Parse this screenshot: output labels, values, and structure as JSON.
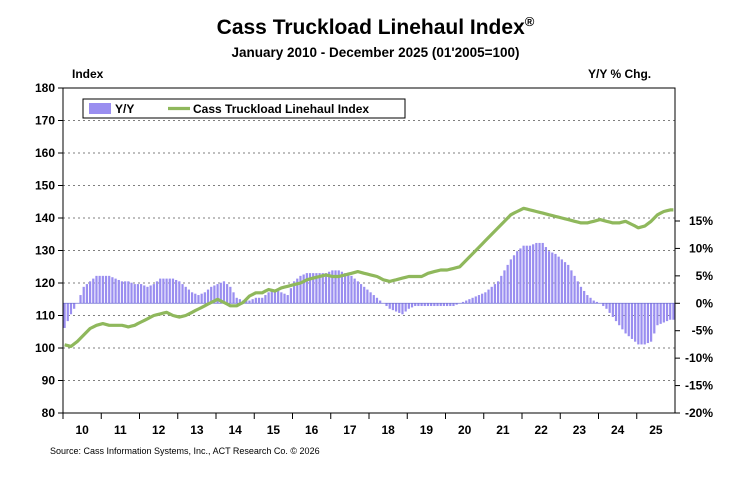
{
  "chart_data": {
    "type": "bar+line",
    "title": "Cass Truckload Linehaul Index",
    "title_mark": "®",
    "subtitle": "January 2010 - December 2025 (01'2005=100)",
    "left_axis_label": "Index",
    "right_axis_label": "Y/Y % Chg.",
    "source": "Source: Cass Information Systems, Inc., ACT Research Co. © 2026",
    "left_ylim": [
      80,
      180
    ],
    "left_ticks": [
      80,
      90,
      100,
      110,
      120,
      130,
      140,
      150,
      160,
      170,
      180
    ],
    "right_ylim": [
      -20,
      15
    ],
    "right_ticks": [
      -20,
      -15,
      -10,
      -5,
      0,
      5,
      10,
      15
    ],
    "right_tick_labels": [
      "-20%",
      "-15%",
      "-10%",
      "-5%",
      "0%",
      "5%",
      "10%",
      "15%"
    ],
    "x_tick_labels": [
      "10",
      "11",
      "12",
      "13",
      "14",
      "15",
      "16",
      "17",
      "18",
      "19",
      "20",
      "21",
      "22",
      "23",
      "24",
      "25"
    ],
    "x_start_year": 2010,
    "months": 192,
    "grid": "horizontal dashed",
    "legend_position": "top-left",
    "series": [
      {
        "name": "Y/Y",
        "axis": "right",
        "kind": "bar",
        "color": "#9a8ef0",
        "anchors": [
          [
            0,
            -4.5
          ],
          [
            2,
            -2
          ],
          [
            4,
            0
          ],
          [
            6,
            3
          ],
          [
            8,
            4
          ],
          [
            10,
            5
          ],
          [
            12,
            5
          ],
          [
            14,
            5
          ],
          [
            16,
            4.5
          ],
          [
            18,
            4
          ],
          [
            20,
            4
          ],
          [
            22,
            3.5
          ],
          [
            24,
            3.5
          ],
          [
            26,
            3
          ],
          [
            28,
            3.5
          ],
          [
            30,
            4.5
          ],
          [
            32,
            4.5
          ],
          [
            34,
            4.5
          ],
          [
            36,
            4
          ],
          [
            38,
            3
          ],
          [
            40,
            2
          ],
          [
            42,
            1.5
          ],
          [
            44,
            2
          ],
          [
            46,
            3
          ],
          [
            48,
            3.5
          ],
          [
            50,
            4
          ],
          [
            52,
            3
          ],
          [
            54,
            1
          ],
          [
            56,
            0.5
          ],
          [
            58,
            0.5
          ],
          [
            60,
            1
          ],
          [
            62,
            1
          ],
          [
            64,
            2
          ],
          [
            66,
            2.5
          ],
          [
            68,
            2
          ],
          [
            70,
            1.5
          ],
          [
            72,
            4
          ],
          [
            74,
            5
          ],
          [
            76,
            5.5
          ],
          [
            78,
            5.5
          ],
          [
            80,
            5.5
          ],
          [
            82,
            5.5
          ],
          [
            84,
            6
          ],
          [
            86,
            6
          ],
          [
            88,
            5.5
          ],
          [
            90,
            5
          ],
          [
            92,
            4
          ],
          [
            94,
            3
          ],
          [
            96,
            2
          ],
          [
            98,
            1
          ],
          [
            100,
            0
          ],
          [
            102,
            -1
          ],
          [
            104,
            -1.5
          ],
          [
            106,
            -2
          ],
          [
            108,
            -1
          ],
          [
            110,
            -0.5
          ],
          [
            112,
            -0.5
          ],
          [
            114,
            -0.5
          ],
          [
            116,
            -0.5
          ],
          [
            118,
            -0.5
          ],
          [
            120,
            -0.5
          ],
          [
            122,
            -0.5
          ],
          [
            124,
            0
          ],
          [
            126,
            0.5
          ],
          [
            128,
            1
          ],
          [
            130,
            1.5
          ],
          [
            132,
            2
          ],
          [
            134,
            3
          ],
          [
            136,
            4
          ],
          [
            138,
            6
          ],
          [
            140,
            8
          ],
          [
            142,
            9.5
          ],
          [
            144,
            10.5
          ],
          [
            146,
            10.5
          ],
          [
            148,
            11
          ],
          [
            150,
            11
          ],
          [
            152,
            9.5
          ],
          [
            154,
            9
          ],
          [
            156,
            8
          ],
          [
            158,
            7
          ],
          [
            160,
            5
          ],
          [
            162,
            3
          ],
          [
            164,
            1.5
          ],
          [
            166,
            0.5
          ],
          [
            168,
            0
          ],
          [
            170,
            -1
          ],
          [
            172,
            -2.5
          ],
          [
            174,
            -4
          ],
          [
            176,
            -5.5
          ],
          [
            178,
            -6.5
          ],
          [
            180,
            -7.5
          ],
          [
            182,
            -7.5
          ],
          [
            184,
            -7
          ],
          [
            186,
            -4
          ],
          [
            188,
            -3.5
          ],
          [
            190,
            -3
          ],
          [
            191,
            -3
          ]
        ]
      },
      {
        "name": "Cass Truckload Linehaul Index",
        "axis": "left",
        "kind": "line",
        "color": "#8fb85c",
        "anchors": [
          [
            0,
            101
          ],
          [
            2,
            100.5
          ],
          [
            4,
            102
          ],
          [
            6,
            104
          ],
          [
            8,
            106
          ],
          [
            10,
            107
          ],
          [
            12,
            107.5
          ],
          [
            14,
            107
          ],
          [
            16,
            107
          ],
          [
            18,
            107
          ],
          [
            20,
            106.5
          ],
          [
            22,
            107
          ],
          [
            24,
            108
          ],
          [
            26,
            109
          ],
          [
            28,
            110
          ],
          [
            30,
            110.5
          ],
          [
            32,
            111
          ],
          [
            34,
            110
          ],
          [
            36,
            109.5
          ],
          [
            38,
            110
          ],
          [
            40,
            111
          ],
          [
            42,
            112
          ],
          [
            44,
            113
          ],
          [
            46,
            114
          ],
          [
            48,
            115
          ],
          [
            50,
            114
          ],
          [
            52,
            113
          ],
          [
            54,
            113
          ],
          [
            56,
            114
          ],
          [
            58,
            116
          ],
          [
            60,
            117
          ],
          [
            62,
            117
          ],
          [
            64,
            118
          ],
          [
            66,
            117.5
          ],
          [
            68,
            118.5
          ],
          [
            70,
            119
          ],
          [
            72,
            119.5
          ],
          [
            74,
            120
          ],
          [
            76,
            121
          ],
          [
            78,
            121.5
          ],
          [
            80,
            122
          ],
          [
            82,
            122.5
          ],
          [
            84,
            122
          ],
          [
            86,
            122
          ],
          [
            88,
            122.5
          ],
          [
            90,
            123
          ],
          [
            92,
            123.5
          ],
          [
            94,
            123
          ],
          [
            96,
            122.5
          ],
          [
            98,
            122
          ],
          [
            100,
            121
          ],
          [
            102,
            120.5
          ],
          [
            104,
            121
          ],
          [
            106,
            121.5
          ],
          [
            108,
            122
          ],
          [
            110,
            122
          ],
          [
            112,
            122
          ],
          [
            114,
            123
          ],
          [
            116,
            123.5
          ],
          [
            118,
            124
          ],
          [
            120,
            124
          ],
          [
            122,
            124.5
          ],
          [
            124,
            125
          ],
          [
            126,
            127
          ],
          [
            128,
            129
          ],
          [
            130,
            131
          ],
          [
            132,
            133
          ],
          [
            134,
            135
          ],
          [
            136,
            137
          ],
          [
            138,
            139
          ],
          [
            140,
            141
          ],
          [
            142,
            142
          ],
          [
            144,
            143
          ],
          [
            146,
            142.5
          ],
          [
            148,
            142
          ],
          [
            150,
            141.5
          ],
          [
            152,
            141
          ],
          [
            154,
            140.5
          ],
          [
            156,
            140
          ],
          [
            158,
            139.5
          ],
          [
            160,
            139
          ],
          [
            162,
            138.5
          ],
          [
            164,
            138.5
          ],
          [
            166,
            139
          ],
          [
            168,
            139.5
          ],
          [
            170,
            139
          ],
          [
            172,
            138.5
          ],
          [
            174,
            138.5
          ],
          [
            176,
            139
          ],
          [
            178,
            138
          ],
          [
            180,
            137
          ],
          [
            182,
            137.5
          ],
          [
            184,
            139
          ],
          [
            186,
            141
          ],
          [
            188,
            142
          ],
          [
            190,
            142.5
          ],
          [
            191,
            142.5
          ]
        ]
      }
    ]
  },
  "legend": {
    "items": [
      "Y/Y",
      "Cass Truckload Linehaul Index"
    ]
  }
}
